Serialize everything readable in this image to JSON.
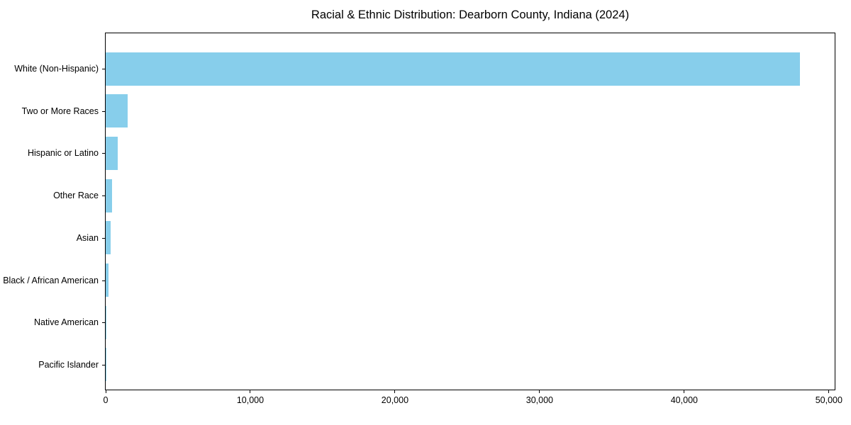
{
  "chart_data": {
    "type": "bar",
    "orientation": "horizontal",
    "title": "Racial & Ethnic Distribution: Dearborn County, Indiana (2024)",
    "categories": [
      "White (Non-Hispanic)",
      "Two or More Races",
      "Hispanic or Latino",
      "Other Race",
      "Asian",
      "Black / African American",
      "Native American",
      "Pacific Islander"
    ],
    "values": [
      48000,
      1500,
      850,
      450,
      350,
      180,
      40,
      10
    ],
    "xlabel": "",
    "ylabel": "",
    "xlim": [
      0,
      50400
    ],
    "xticks": [
      {
        "value": 0,
        "label": "0"
      },
      {
        "value": 10000,
        "label": "10,000"
      },
      {
        "value": 20000,
        "label": "20,000"
      },
      {
        "value": 30000,
        "label": "30,000"
      },
      {
        "value": 40000,
        "label": "40,000"
      },
      {
        "value": 50000,
        "label": "50,000"
      }
    ],
    "grid": false,
    "legend": null,
    "colors": {
      "bar": "#87CEEB",
      "spine": "#000000",
      "text": "#000000",
      "background": "#ffffff"
    }
  }
}
